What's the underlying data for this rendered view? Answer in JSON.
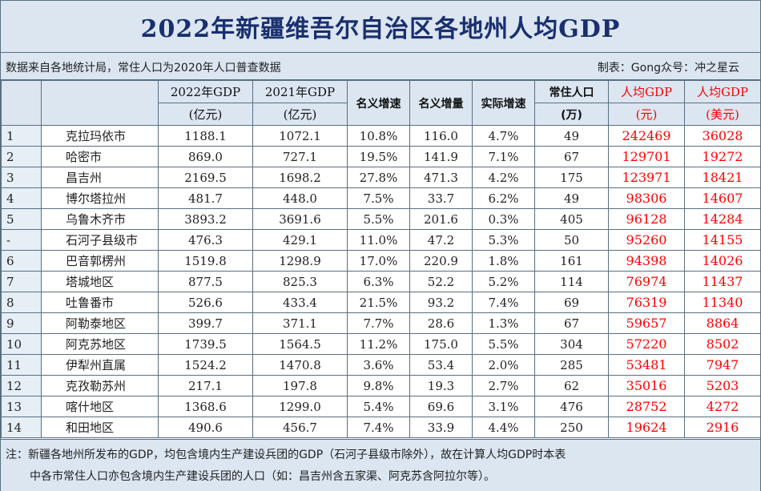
{
  "title": "2022年新疆维吾尔自治区各地州人均GDP",
  "source": "数据来自各地统计局，常住人口为2020年人口普查数据",
  "credit": "制表：Gong众号：冲之星云",
  "headers": {
    "gdp2022": "2022年GDP",
    "gdp2021": "2021年GDP",
    "unit_yiyuan": "(亿元)",
    "nominal_rate": "名义增速",
    "nominal_inc": "名义增量",
    "real_rate": "实际增速",
    "pop": "常住人口",
    "pop_unit": "(万)",
    "per_capita": "人均GDP",
    "yuan": "(元)",
    "usd": "(美元)"
  },
  "rows": [
    {
      "rank": "1",
      "region": "克拉玛依市",
      "gdp2022": "1188.1",
      "gdp2021": "1072.1",
      "nominal_rate": "10.8%",
      "nominal_inc": "116.0",
      "real_rate": "4.7%",
      "pop": "49",
      "pc_yuan": "242469",
      "pc_usd": "36028"
    },
    {
      "rank": "2",
      "region": "哈密市",
      "gdp2022": "869.0",
      "gdp2021": "727.1",
      "nominal_rate": "19.5%",
      "nominal_inc": "141.9",
      "real_rate": "7.1%",
      "pop": "67",
      "pc_yuan": "129701",
      "pc_usd": "19272"
    },
    {
      "rank": "3",
      "region": "昌吉州",
      "gdp2022": "2169.5",
      "gdp2021": "1698.2",
      "nominal_rate": "27.8%",
      "nominal_inc": "471.3",
      "real_rate": "4.2%",
      "pop": "175",
      "pc_yuan": "123971",
      "pc_usd": "18421"
    },
    {
      "rank": "4",
      "region": "博尔塔拉州",
      "gdp2022": "481.7",
      "gdp2021": "448.0",
      "nominal_rate": "7.5%",
      "nominal_inc": "33.7",
      "real_rate": "6.2%",
      "pop": "49",
      "pc_yuan": "98306",
      "pc_usd": "14607"
    },
    {
      "rank": "5",
      "region": "乌鲁木齐市",
      "gdp2022": "3893.2",
      "gdp2021": "3691.6",
      "nominal_rate": "5.5%",
      "nominal_inc": "201.6",
      "real_rate": "0.3%",
      "pop": "405",
      "pc_yuan": "96128",
      "pc_usd": "14284"
    },
    {
      "rank": "-",
      "region": "石河子县级市",
      "gdp2022": "476.3",
      "gdp2021": "429.1",
      "nominal_rate": "11.0%",
      "nominal_inc": "47.2",
      "real_rate": "5.3%",
      "pop": "50",
      "pc_yuan": "95260",
      "pc_usd": "14155"
    },
    {
      "rank": "6",
      "region": "巴音郭楞州",
      "gdp2022": "1519.8",
      "gdp2021": "1298.9",
      "nominal_rate": "17.0%",
      "nominal_inc": "220.9",
      "real_rate": "1.8%",
      "pop": "161",
      "pc_yuan": "94398",
      "pc_usd": "14026"
    },
    {
      "rank": "7",
      "region": "塔城地区",
      "gdp2022": "877.5",
      "gdp2021": "825.3",
      "nominal_rate": "6.3%",
      "nominal_inc": "52.2",
      "real_rate": "5.2%",
      "pop": "114",
      "pc_yuan": "76974",
      "pc_usd": "11437"
    },
    {
      "rank": "8",
      "region": "吐鲁番市",
      "gdp2022": "526.6",
      "gdp2021": "433.4",
      "nominal_rate": "21.5%",
      "nominal_inc": "93.2",
      "real_rate": "7.4%",
      "pop": "69",
      "pc_yuan": "76319",
      "pc_usd": "11340"
    },
    {
      "rank": "9",
      "region": "阿勒泰地区",
      "gdp2022": "399.7",
      "gdp2021": "371.1",
      "nominal_rate": "7.7%",
      "nominal_inc": "28.6",
      "real_rate": "1.3%",
      "pop": "67",
      "pc_yuan": "59657",
      "pc_usd": "8864"
    },
    {
      "rank": "10",
      "region": "阿克苏地区",
      "gdp2022": "1739.5",
      "gdp2021": "1564.5",
      "nominal_rate": "11.2%",
      "nominal_inc": "175.0",
      "real_rate": "5.5%",
      "pop": "304",
      "pc_yuan": "57220",
      "pc_usd": "8502"
    },
    {
      "rank": "11",
      "region": "伊犁州直属",
      "gdp2022": "1524.2",
      "gdp2021": "1470.8",
      "nominal_rate": "3.6%",
      "nominal_inc": "53.4",
      "real_rate": "2.0%",
      "pop": "285",
      "pc_yuan": "53481",
      "pc_usd": "7947"
    },
    {
      "rank": "12",
      "region": "克孜勒苏州",
      "gdp2022": "217.1",
      "gdp2021": "197.8",
      "nominal_rate": "9.8%",
      "nominal_inc": "19.3",
      "real_rate": "2.7%",
      "pop": "62",
      "pc_yuan": "35016",
      "pc_usd": "5203"
    },
    {
      "rank": "13",
      "region": "喀什地区",
      "gdp2022": "1368.6",
      "gdp2021": "1299.0",
      "nominal_rate": "5.4%",
      "nominal_inc": "69.6",
      "real_rate": "3.1%",
      "pop": "476",
      "pc_yuan": "28752",
      "pc_usd": "4272"
    },
    {
      "rank": "14",
      "region": "和田地区",
      "gdp2022": "490.6",
      "gdp2021": "456.7",
      "nominal_rate": "7.4%",
      "nominal_inc": "33.9",
      "real_rate": "4.4%",
      "pop": "250",
      "pc_yuan": "19624",
      "pc_usd": "2916"
    }
  ],
  "note": {
    "line1": "注：新疆各地州所发布的GDP，均包含境内生产建设兵团的GDP（石河子县级市除外），故在计算人均GDP时本表",
    "line2": "中各市常住人口亦包含境内生产建设兵团的人口（如：昌吉州含五家渠、阿克苏含阿拉尔等）。"
  }
}
